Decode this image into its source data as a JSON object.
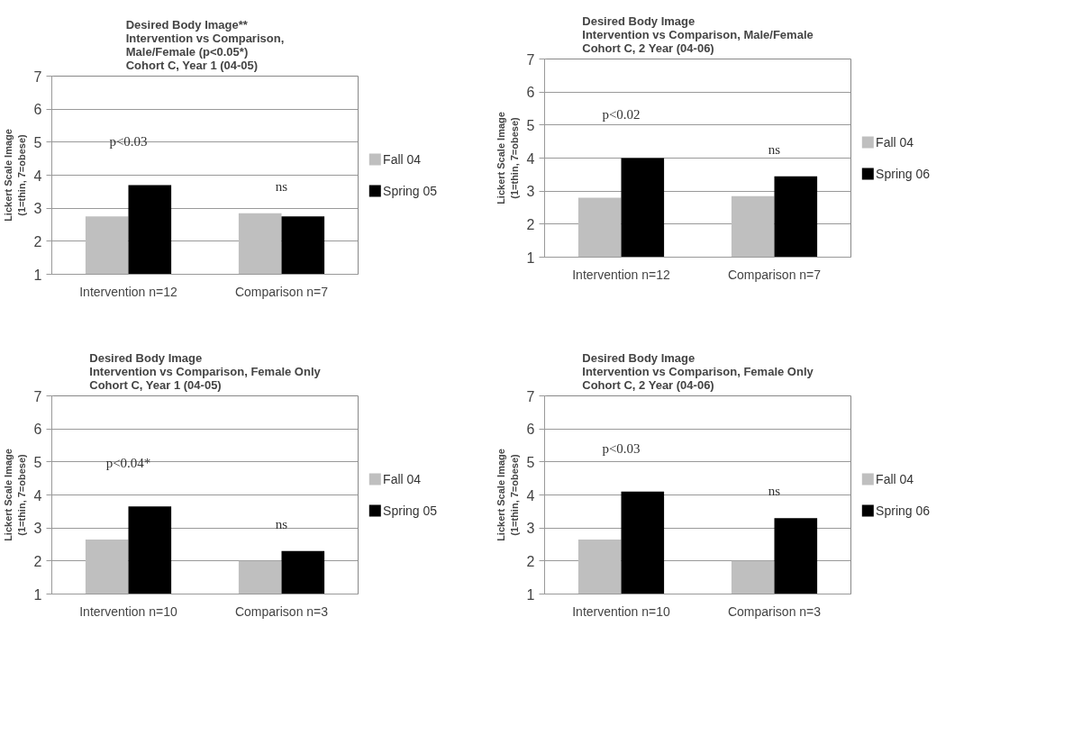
{
  "chart_data": [
    {
      "type": "bar",
      "title": "Desired Body Image**\nIntervention vs Comparison,\nMale/Female (p<0.05*)\nCohort C, Year 1 (04-05)",
      "ylabel": "Lickert Scale Image\n(1=thin, 7=obese)",
      "categories": [
        "Intervention n=12",
        "Comparison n=7"
      ],
      "series": [
        {
          "name": "Fall 04",
          "color": "#bfbfbf",
          "values": [
            2.75,
            2.85
          ]
        },
        {
          "name": "Spring 05",
          "color": "#000000",
          "values": [
            3.7,
            2.75
          ]
        }
      ],
      "ylim": [
        1,
        7
      ],
      "yticks": [
        1,
        2,
        3,
        4,
        5,
        6,
        7
      ],
      "grid": "y",
      "legend": "right",
      "annotations": [
        "p<0.03",
        "ns"
      ]
    },
    {
      "type": "bar",
      "title": "Desired Body Image\nIntervention vs Comparison, Male/Female\nCohort C, 2 Year (04-06)",
      "ylabel": "Lickert Scale Image\n(1=thin, 7=obese)",
      "categories": [
        "Intervention n=12",
        "Comparison n=7"
      ],
      "series": [
        {
          "name": "Fall 04",
          "color": "#bfbfbf",
          "values": [
            2.8,
            2.85
          ]
        },
        {
          "name": "Spring 06",
          "color": "#000000",
          "values": [
            4.0,
            3.45
          ]
        }
      ],
      "ylim": [
        1,
        7
      ],
      "yticks": [
        1,
        2,
        3,
        4,
        5,
        6,
        7
      ],
      "grid": "y",
      "legend": "right",
      "annotations": [
        "p<0.02",
        "ns"
      ]
    },
    {
      "type": "bar",
      "title": "Desired Body Image\nIntervention vs Comparison, Female Only\nCohort C, Year 1 (04-05)",
      "ylabel": "Lickert Scale Image\n(1=thin, 7=obese)",
      "categories": [
        "Intervention n=10",
        "Comparison n=3"
      ],
      "series": [
        {
          "name": "Fall 04",
          "color": "#bfbfbf",
          "values": [
            2.65,
            2.0
          ]
        },
        {
          "name": "Spring 05",
          "color": "#000000",
          "values": [
            3.65,
            2.3
          ]
        }
      ],
      "ylim": [
        1,
        7
      ],
      "yticks": [
        1,
        2,
        3,
        4,
        5,
        6,
        7
      ],
      "grid": "y",
      "legend": "right",
      "annotations": [
        "p<0.04*",
        "ns"
      ]
    },
    {
      "type": "bar",
      "title": "Desired Body Image\nIntervention vs Comparison, Female Only\nCohort C, 2 Year (04-06)",
      "ylabel": "Lickert Scale Image\n(1=thin, 7=obese)",
      "categories": [
        "Intervention n=10",
        "Comparison n=3"
      ],
      "series": [
        {
          "name": "Fall 04",
          "color": "#bfbfbf",
          "values": [
            2.65,
            2.0
          ]
        },
        {
          "name": "Spring 06",
          "color": "#000000",
          "values": [
            4.1,
            3.3
          ]
        }
      ],
      "ylim": [
        1,
        7
      ],
      "yticks": [
        1,
        2,
        3,
        4,
        5,
        6,
        7
      ],
      "grid": "y",
      "legend": "right",
      "annotations": [
        "p<0.03",
        "ns"
      ]
    }
  ]
}
